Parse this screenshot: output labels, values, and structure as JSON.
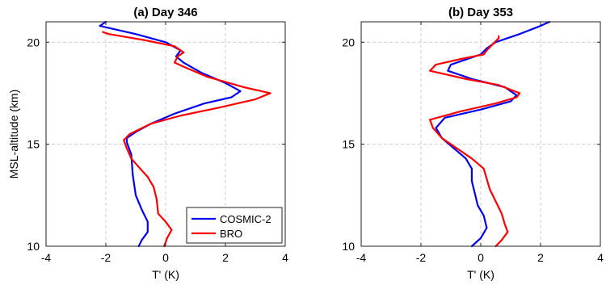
{
  "chart_data": [
    {
      "type": "line",
      "title": "(a) Day 346",
      "xlabel": "T' (K)",
      "ylabel": "MSL-altitude (km)",
      "xlim": [
        -4,
        4
      ],
      "ylim": [
        10,
        21
      ],
      "xticks": [
        -4,
        -2,
        0,
        2,
        4
      ],
      "yticks": [
        10,
        15,
        20
      ],
      "grid": true,
      "legend": {
        "placement": "bottom-right",
        "entries": [
          "COSMIC-2",
          "BRO"
        ]
      },
      "series": [
        {
          "name": "COSMIC-2",
          "color": "#0000ee",
          "points": [
            [
              -0.9,
              10.0
            ],
            [
              -0.8,
              10.3
            ],
            [
              -0.6,
              10.7
            ],
            [
              -0.6,
              11.2
            ],
            [
              -0.8,
              11.8
            ],
            [
              -1.0,
              12.5
            ],
            [
              -1.1,
              13.5
            ],
            [
              -1.15,
              14.5
            ],
            [
              -1.3,
              15.1
            ],
            [
              -1.3,
              15.3
            ],
            [
              -1.0,
              15.6
            ],
            [
              -0.5,
              16.0
            ],
            [
              0.3,
              16.5
            ],
            [
              1.3,
              17.0
            ],
            [
              2.2,
              17.3
            ],
            [
              2.5,
              17.6
            ],
            [
              2.0,
              18.0
            ],
            [
              1.2,
              18.5
            ],
            [
              0.6,
              19.0
            ],
            [
              0.35,
              19.3
            ],
            [
              0.5,
              19.6
            ],
            [
              0.0,
              20.0
            ],
            [
              -1.0,
              20.4
            ],
            [
              -2.2,
              20.8
            ],
            [
              -2.0,
              21.0
            ]
          ]
        },
        {
          "name": "BRO",
          "color": "#ff0000",
          "points": [
            [
              -0.05,
              10.0
            ],
            [
              0.05,
              10.4
            ],
            [
              0.2,
              10.8
            ],
            [
              0.0,
              11.2
            ],
            [
              -0.25,
              11.6
            ],
            [
              -0.3,
              12.3
            ],
            [
              -0.4,
              12.9
            ],
            [
              -0.6,
              13.4
            ],
            [
              -0.85,
              13.8
            ],
            [
              -1.15,
              14.3
            ],
            [
              -1.3,
              14.8
            ],
            [
              -1.4,
              15.2
            ],
            [
              -1.2,
              15.5
            ],
            [
              -0.5,
              16.0
            ],
            [
              0.5,
              16.4
            ],
            [
              1.8,
              16.8
            ],
            [
              3.0,
              17.2
            ],
            [
              3.5,
              17.5
            ],
            [
              2.6,
              17.8
            ],
            [
              1.4,
              18.3
            ],
            [
              0.6,
              18.8
            ],
            [
              0.3,
              19.0
            ],
            [
              0.4,
              19.3
            ],
            [
              0.6,
              19.5
            ],
            [
              0.3,
              19.8
            ],
            [
              -0.7,
              20.1
            ],
            [
              -1.9,
              20.4
            ],
            [
              -2.1,
              20.5
            ]
          ]
        }
      ]
    },
    {
      "type": "line",
      "title": "(b) Day 353",
      "xlabel": "T' (K)",
      "ylabel": "",
      "xlim": [
        -4,
        4
      ],
      "ylim": [
        10,
        21
      ],
      "xticks": [
        -4,
        -2,
        0,
        2,
        4
      ],
      "yticks": [
        10,
        15,
        20
      ],
      "grid": true,
      "series": [
        {
          "name": "COSMIC-2",
          "color": "#0000ee",
          "points": [
            [
              -0.3,
              10.0
            ],
            [
              0.0,
              10.4
            ],
            [
              0.2,
              10.9
            ],
            [
              0.1,
              11.5
            ],
            [
              -0.1,
              12.0
            ],
            [
              -0.2,
              12.6
            ],
            [
              -0.3,
              13.2
            ],
            [
              -0.3,
              13.8
            ],
            [
              -0.5,
              14.3
            ],
            [
              -0.9,
              14.8
            ],
            [
              -1.3,
              15.3
            ],
            [
              -1.5,
              15.8
            ],
            [
              -1.2,
              16.3
            ],
            [
              0.0,
              16.7
            ],
            [
              1.0,
              17.1
            ],
            [
              1.2,
              17.4
            ],
            [
              0.8,
              17.8
            ],
            [
              -0.3,
              18.2
            ],
            [
              -1.1,
              18.6
            ],
            [
              -1.0,
              18.9
            ],
            [
              -0.4,
              19.2
            ],
            [
              0.0,
              19.4
            ],
            [
              0.2,
              19.7
            ],
            [
              0.5,
              20.0
            ],
            [
              1.3,
              20.4
            ],
            [
              2.0,
              20.8
            ],
            [
              2.3,
              21.0
            ]
          ]
        },
        {
          "name": "BRO",
          "color": "#ff0000",
          "points": [
            [
              0.5,
              10.0
            ],
            [
              0.7,
              10.3
            ],
            [
              0.9,
              10.7
            ],
            [
              0.8,
              11.1
            ],
            [
              0.7,
              11.6
            ],
            [
              0.5,
              12.2
            ],
            [
              0.3,
              12.8
            ],
            [
              0.2,
              13.3
            ],
            [
              0.1,
              13.8
            ],
            [
              -0.3,
              14.3
            ],
            [
              -0.8,
              14.8
            ],
            [
              -1.3,
              15.3
            ],
            [
              -1.6,
              15.8
            ],
            [
              -1.7,
              16.2
            ],
            [
              -0.7,
              16.6
            ],
            [
              0.5,
              17.0
            ],
            [
              1.2,
              17.3
            ],
            [
              1.3,
              17.5
            ],
            [
              0.6,
              17.9
            ],
            [
              -0.5,
              18.2
            ],
            [
              -1.7,
              18.6
            ],
            [
              -1.5,
              18.9
            ],
            [
              -0.6,
              19.2
            ],
            [
              0.1,
              19.4
            ],
            [
              0.2,
              19.6
            ],
            [
              0.4,
              19.9
            ],
            [
              0.6,
              20.2
            ],
            [
              0.6,
              20.3
            ]
          ]
        }
      ]
    }
  ]
}
